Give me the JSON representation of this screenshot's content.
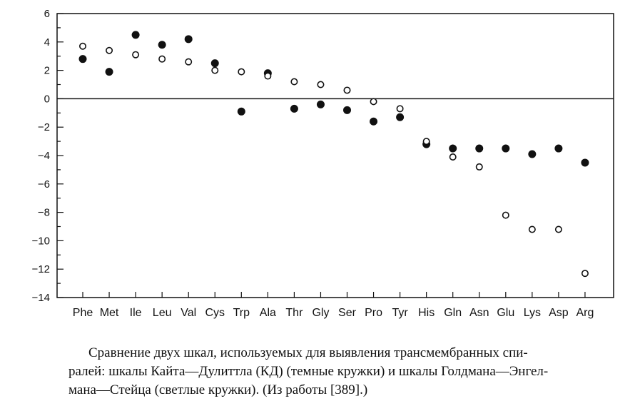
{
  "chart_data": {
    "type": "scatter",
    "categories": [
      "Phe",
      "Met",
      "Ile",
      "Leu",
      "Val",
      "Cys",
      "Trp",
      "Ala",
      "Thr",
      "Gly",
      "Ser",
      "Pro",
      "Tyr",
      "His",
      "Gln",
      "Asn",
      "Glu",
      "Lys",
      "Asp",
      "Arg"
    ],
    "series": [
      {
        "marker": "filled",
        "values": [
          2.8,
          1.9,
          4.5,
          3.8,
          4.2,
          2.5,
          -0.9,
          1.8,
          -0.7,
          -0.4,
          -0.8,
          -1.6,
          -1.3,
          -3.2,
          -3.5,
          -3.5,
          -3.5,
          -3.9,
          -3.5,
          -4.5
        ]
      },
      {
        "marker": "open",
        "values": [
          3.7,
          3.4,
          3.1,
          2.8,
          2.6,
          2.0,
          1.9,
          1.6,
          1.2,
          1.0,
          0.6,
          -0.2,
          -0.7,
          -3.0,
          -4.1,
          -4.8,
          -8.2,
          -9.2,
          -9.2,
          -12.3
        ]
      }
    ],
    "ylim": [
      -14,
      6
    ],
    "yticks": [
      6,
      4,
      2,
      0,
      -2,
      -4,
      -6,
      -8,
      -10,
      -12,
      -14
    ],
    "ytick_labels": [
      "6",
      "4",
      "2",
      "0",
      "−2",
      "−4",
      "−6",
      "−8",
      "−10",
      "−12",
      "−14"
    ],
    "zero_line": true,
    "grid": false
  },
  "caption": {
    "line1": "Сравнение двух шкал, используемых для выявления трансмембранных спи-",
    "line2": "ралей: шкалы Кайта—Дулиттла (КД) (темные кружки) и шкалы Голдмана—Энгел-",
    "line3": "мана—Стейца (светлые кружки). (Из работы [389].)"
  }
}
